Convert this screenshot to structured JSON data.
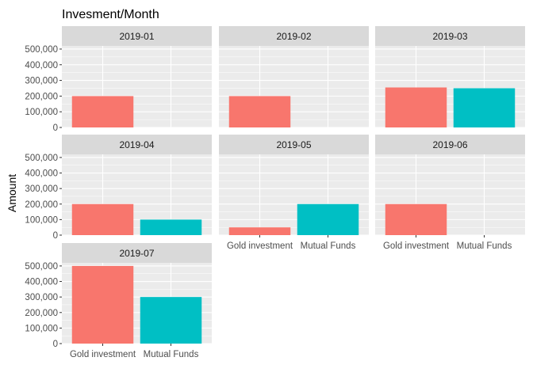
{
  "chart_data": {
    "type": "bar",
    "title": "Invesment/Month",
    "ylabel": "Amount",
    "xlabel": "",
    "categories": [
      "Gold investment",
      "Mutual Funds"
    ],
    "ylim": [
      0,
      520000
    ],
    "yticks": [
      0,
      100000,
      200000,
      300000,
      400000,
      500000
    ],
    "ytick_labels": [
      "0",
      "100,000",
      "200,000",
      "300,000",
      "400,000",
      "500,000"
    ],
    "colors": {
      "Gold investment": "#F8766D",
      "Mutual Funds": "#00BFC4"
    },
    "panel_background": "#EBEBEB",
    "strip_background": "#D9D9D9",
    "grid_color": "#FFFFFF",
    "grid": true,
    "legend": "none",
    "facets": [
      {
        "label": "2019-01",
        "values": [
          200000,
          null
        ]
      },
      {
        "label": "2019-02",
        "values": [
          200000,
          null
        ]
      },
      {
        "label": "2019-03",
        "values": [
          255000,
          250000
        ]
      },
      {
        "label": "2019-04",
        "values": [
          200000,
          100000
        ]
      },
      {
        "label": "2019-05",
        "values": [
          50000,
          200000
        ]
      },
      {
        "label": "2019-06",
        "values": [
          200000,
          null
        ]
      },
      {
        "label": "2019-07",
        "values": [
          500000,
          300000
        ]
      }
    ]
  }
}
